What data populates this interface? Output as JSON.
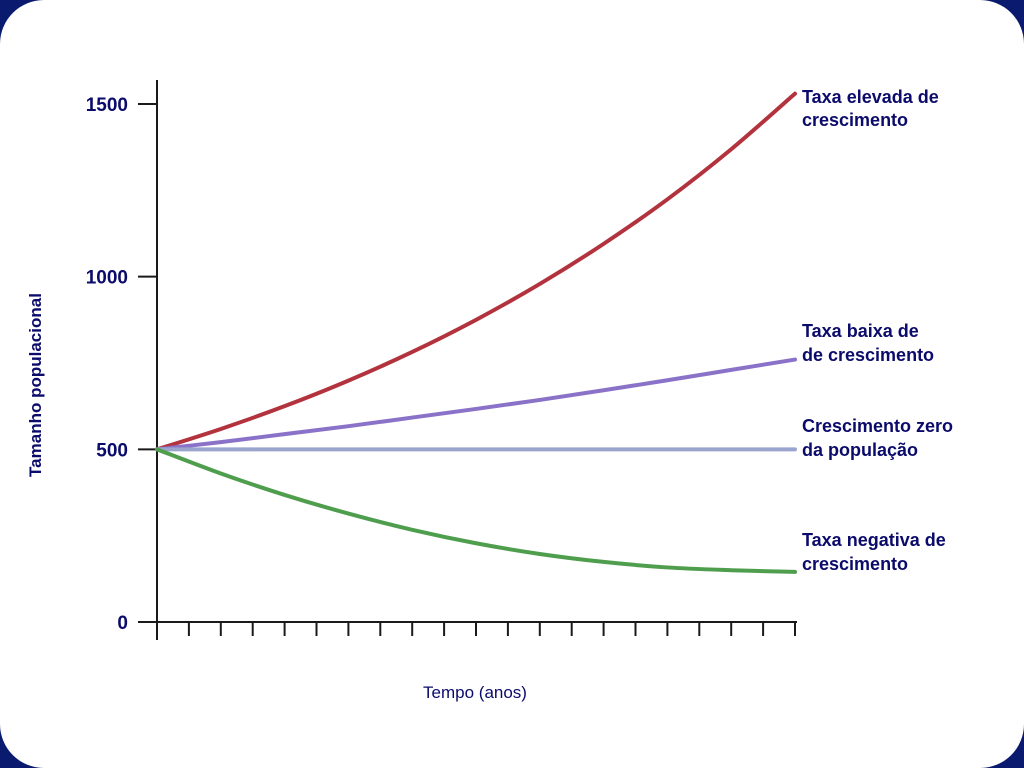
{
  "chart_data": {
    "type": "line",
    "title": "",
    "xlabel": "Tempo (anos)",
    "ylabel": "Tamanho populacional",
    "ylim": [
      0,
      1500
    ],
    "yticks": [
      0,
      500,
      1000,
      1500
    ],
    "xlim": [
      0,
      20
    ],
    "x_tick_count": 21,
    "grid": false,
    "series": [
      {
        "name": "Taxa elevada de crescimento",
        "label_lines": [
          "Taxa elevada de",
          "crescimento"
        ],
        "color": "#b2333d",
        "x": [
          0,
          2,
          4,
          6,
          8,
          10,
          12,
          14,
          16,
          18,
          20
        ],
        "values": [
          500,
          559,
          625,
          699,
          782,
          875,
          979,
          1095,
          1224,
          1369,
          1530
        ]
      },
      {
        "name": "Taxa baixa de de crescimento",
        "label_lines": [
          "Taxa baixa de",
          "de crescimento"
        ],
        "color": "#8a72c8",
        "x": [
          0,
          2,
          4,
          6,
          8,
          10,
          12,
          14,
          16,
          18,
          20
        ],
        "values": [
          500,
          521,
          544,
          567,
          592,
          617,
          643,
          671,
          700,
          730,
          760
        ]
      },
      {
        "name": "Crescimento zero da população",
        "label_lines": [
          "Crescimento zero",
          "da população"
        ],
        "color": "#9aa4cc",
        "x": [
          0,
          2,
          4,
          6,
          8,
          10,
          12,
          14,
          16,
          18,
          20
        ],
        "values": [
          500,
          500,
          500,
          500,
          500,
          500,
          500,
          500,
          500,
          500,
          500
        ]
      },
      {
        "name": "Taxa negativa de crescimento",
        "label_lines": [
          "Taxa negativa de",
          "crescimento"
        ],
        "color": "#4e9e4e",
        "x": [
          0,
          2,
          4,
          6,
          8,
          10,
          12,
          14,
          16,
          18,
          20
        ],
        "values": [
          500,
          430,
          368,
          314,
          267,
          228,
          197,
          174,
          158,
          150,
          145
        ]
      }
    ]
  }
}
